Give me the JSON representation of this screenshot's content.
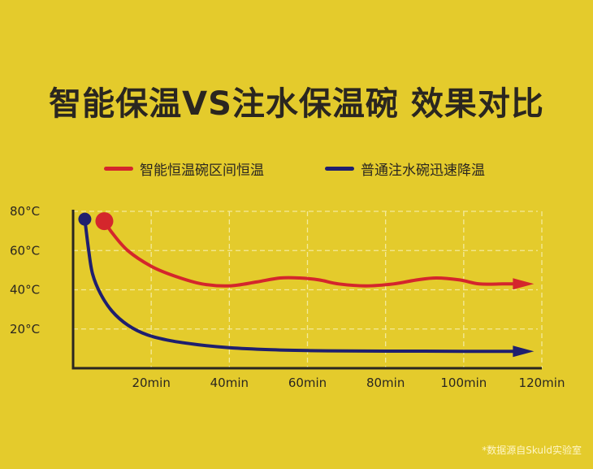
{
  "colors": {
    "background": "#e4cb2c",
    "series_smart": "#d4262c",
    "series_normal": "#1f1f6e",
    "axis": "#2a2620",
    "grid": "#f3ea9a"
  },
  "title": "智能保温VS注水保温碗 效果对比",
  "legend": [
    {
      "label": "智能恒温碗区间恒温",
      "color": "#d4262c"
    },
    {
      "label": "普通注水碗迅速降温",
      "color": "#1f1f6e"
    }
  ],
  "source_note": "*数据源自Skuld实验室",
  "chart_data": {
    "type": "line",
    "title": "智能保温VS注水保温碗 效果对比",
    "xlabel": "",
    "ylabel": "",
    "x_tick_labels": [
      "20min",
      "40min",
      "60min",
      "80min",
      "100min",
      "120min"
    ],
    "x_ticks": [
      20,
      40,
      60,
      80,
      100,
      120
    ],
    "y_tick_labels": [
      "80°C",
      "60°C",
      "40°C",
      "20°C"
    ],
    "y_ticks": [
      80,
      60,
      40,
      20
    ],
    "xlim": [
      0,
      120
    ],
    "ylim": [
      0,
      80
    ],
    "grid": true,
    "legend_position": "top",
    "series": [
      {
        "name": "智能恒温碗区间恒温",
        "color": "#d4262c",
        "x": [
          8,
          10,
          14,
          20,
          26,
          33,
          40,
          47,
          53,
          58,
          63,
          68,
          75,
          82,
          88,
          93,
          99,
          104,
          110,
          118
        ],
        "y": [
          75,
          69,
          60,
          52,
          47,
          43,
          42,
          44,
          46,
          46,
          45,
          43,
          42,
          43,
          45,
          46,
          45,
          43,
          43,
          43
        ]
      },
      {
        "name": "普通注水碗迅速降温",
        "color": "#1f1f6e",
        "x": [
          3,
          4,
          5,
          7,
          10,
          14,
          19,
          25,
          32,
          40,
          50,
          60,
          70,
          80,
          90,
          100,
          110,
          118
        ],
        "y": [
          76,
          60,
          48,
          38,
          29,
          22,
          17,
          14,
          12,
          10.5,
          9.5,
          9,
          8.8,
          8.7,
          8.7,
          8.6,
          8.6,
          8.6
        ]
      }
    ]
  }
}
